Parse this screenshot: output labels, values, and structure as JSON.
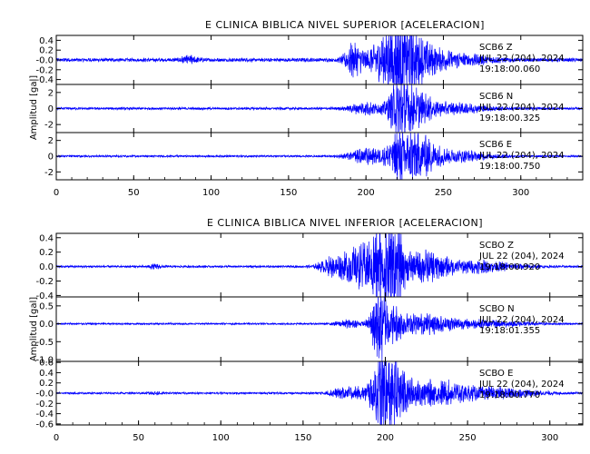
{
  "chart_data": [
    {
      "type": "line",
      "title": "E CLINICA BIBLICA NIVEL SUPERIOR [ACELERACION]",
      "ylabel": "Amplitud [gal]",
      "xlim": [
        0,
        340
      ],
      "x_ticks": [
        0,
        50,
        100,
        150,
        200,
        250,
        300
      ],
      "color": "#0000ff",
      "panels": [
        {
          "name": "Z",
          "ylim": [
            -0.5,
            0.5
          ],
          "y_ticks": [
            -0.4,
            -0.2,
            0.0,
            0.2,
            0.4
          ],
          "y_tick_labels": [
            "-0.4",
            "-0.2",
            "-0.0",
            "0.2",
            "0.4"
          ],
          "annotation": [
            "SCB6  Z",
            "JUL 22 (204), 2024",
            "19:18:00.060"
          ],
          "noise": 0.03,
          "bursts": [
            {
              "t": 86,
              "w": 4,
              "a": 0.06
            },
            {
              "t": 192,
              "w": 4,
              "a": 0.25
            },
            {
              "t": 212,
              "w": 8,
              "a": 0.32
            },
            {
              "t": 222,
              "w": 5,
              "a": 0.44
            },
            {
              "t": 232,
              "w": 8,
              "a": 0.3
            },
            {
              "t": 250,
              "w": 20,
              "a": 0.12
            }
          ]
        },
        {
          "name": "N",
          "ylim": [
            -3,
            3
          ],
          "y_ticks": [
            -2,
            0,
            2
          ],
          "y_tick_labels": [
            "-2",
            "0",
            "2"
          ],
          "annotation": [
            "SCB6  N",
            "JUL 22 (204), 2024",
            "19:18:00.325"
          ],
          "noise": 0.12,
          "bursts": [
            {
              "t": 200,
              "w": 8,
              "a": 0.6
            },
            {
              "t": 222,
              "w": 5,
              "a": 2.8
            },
            {
              "t": 232,
              "w": 8,
              "a": 1.4
            },
            {
              "t": 255,
              "w": 18,
              "a": 0.5
            }
          ]
        },
        {
          "name": "E",
          "ylim": [
            -3,
            3
          ],
          "y_ticks": [
            -2,
            0,
            2
          ],
          "y_tick_labels": [
            "-2",
            "0",
            "2"
          ],
          "annotation": [
            "SCB6  E",
            "JUL 22 (204), 2024",
            "19:18:00.750"
          ],
          "noise": 0.1,
          "bursts": [
            {
              "t": 200,
              "w": 8,
              "a": 0.8
            },
            {
              "t": 222,
              "w": 6,
              "a": 2.3
            },
            {
              "t": 234,
              "w": 8,
              "a": 1.8
            },
            {
              "t": 255,
              "w": 18,
              "a": 0.6
            }
          ]
        }
      ]
    },
    {
      "type": "line",
      "title": "E CLINICA BIBLICA NIVEL INFERIOR [ACELERACION]",
      "ylabel": "Amplitud [gal]",
      "xlim": [
        0,
        320
      ],
      "x_ticks": [
        0,
        50,
        100,
        150,
        200,
        250,
        300
      ],
      "color": "#0000ff",
      "panels": [
        {
          "name": "Z",
          "ylim": [
            -0.42,
            0.46
          ],
          "y_ticks": [
            -0.4,
            -0.2,
            0.0,
            0.2,
            0.4
          ],
          "y_tick_labels": [
            "-0.4",
            "-0.2",
            "0.0",
            "0.2",
            "0.4"
          ],
          "annotation": [
            "SCBO  Z",
            "JUL 22 (204), 2024",
            "19:18:00.920"
          ],
          "noise": 0.012,
          "bursts": [
            {
              "t": 60,
              "w": 3,
              "a": 0.02
            },
            {
              "t": 168,
              "w": 6,
              "a": 0.1
            },
            {
              "t": 182,
              "w": 6,
              "a": 0.2
            },
            {
              "t": 196,
              "w": 6,
              "a": 0.4
            },
            {
              "t": 205,
              "w": 5,
              "a": 0.35
            },
            {
              "t": 222,
              "w": 10,
              "a": 0.15
            },
            {
              "t": 250,
              "w": 20,
              "a": 0.07
            }
          ]
        },
        {
          "name": "N",
          "ylim": [
            -1.05,
            0.75
          ],
          "y_ticks": [
            -1.0,
            -0.5,
            0.0,
            0.5
          ],
          "y_tick_labels": [
            "-1.0",
            "-0.5",
            "0.0",
            "0.5"
          ],
          "annotation": [
            "SCBO  N",
            "JUL 22 (204), 2024",
            "19:18:01.355"
          ],
          "noise": 0.02,
          "bursts": [
            {
              "t": 178,
              "w": 6,
              "a": 0.08
            },
            {
              "t": 196,
              "w": 3,
              "a": 0.95
            },
            {
              "t": 205,
              "w": 6,
              "a": 0.35
            },
            {
              "t": 225,
              "w": 12,
              "a": 0.2
            },
            {
              "t": 260,
              "w": 20,
              "a": 0.08
            }
          ]
        },
        {
          "name": "E",
          "ylim": [
            -0.62,
            0.62
          ],
          "y_ticks": [
            -0.6,
            -0.4,
            -0.2,
            0.0,
            0.2,
            0.4,
            0.6
          ],
          "y_tick_labels": [
            "-0.6",
            "-0.4",
            "-0.2",
            "-0.0",
            "0.2",
            "0.4",
            "0.6"
          ],
          "annotation": [
            "SCBO  E",
            "JUL 22 (204), 2024",
            "19:18:00.770"
          ],
          "noise": 0.015,
          "bursts": [
            {
              "t": 60,
              "w": 3,
              "a": 0.02
            },
            {
              "t": 178,
              "w": 8,
              "a": 0.1
            },
            {
              "t": 198,
              "w": 5,
              "a": 0.58
            },
            {
              "t": 207,
              "w": 6,
              "a": 0.35
            },
            {
              "t": 230,
              "w": 14,
              "a": 0.18
            },
            {
              "t": 265,
              "w": 20,
              "a": 0.08
            }
          ]
        }
      ]
    }
  ]
}
